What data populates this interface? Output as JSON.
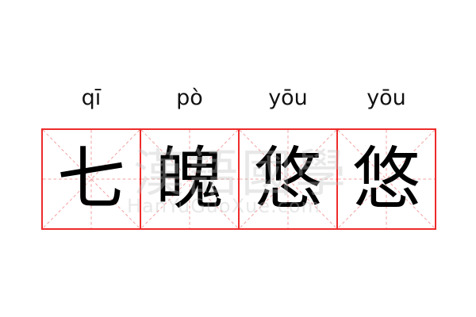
{
  "colors": {
    "grid_border": "#ee2b2b",
    "guide_lines": "#f4a0a0",
    "text": "#000000"
  },
  "watermark": {
    "cjk": "漢語國學",
    "latin": "HanYuGuoXue.com"
  },
  "cells": [
    {
      "pinyin": "qī",
      "char": "七"
    },
    {
      "pinyin": "pò",
      "char": "魄"
    },
    {
      "pinyin": "yōu",
      "char": "悠"
    },
    {
      "pinyin": "yōu",
      "char": "悠"
    }
  ]
}
